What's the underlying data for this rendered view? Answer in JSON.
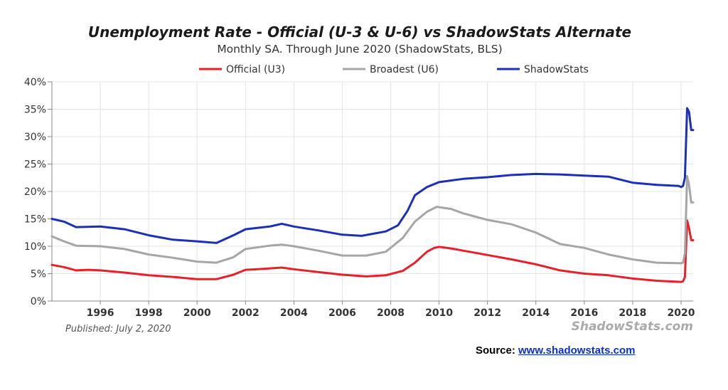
{
  "chart_data": {
    "type": "line",
    "title": "Unemployment Rate - Official (U-3 & U-6) vs ShadowStats Alternate",
    "subtitle": "Monthly SA. Through June 2020  (ShadowStats, BLS)",
    "ylim": [
      0,
      40
    ],
    "xlim": [
      1994.0,
      2020.5
    ],
    "y_ticks": [
      0,
      5,
      10,
      15,
      20,
      25,
      30,
      35,
      40
    ],
    "y_tick_labels": [
      "0%",
      "5%",
      "10%",
      "15%",
      "20%",
      "25%",
      "30%",
      "35%",
      "40%"
    ],
    "x_ticks": [
      1996,
      1998,
      2000,
      2002,
      2004,
      2006,
      2008,
      2010,
      2012,
      2014,
      2016,
      2018,
      2020
    ],
    "x_tick_labels": [
      "1996",
      "1998",
      "2000",
      "2002",
      "2004",
      "2006",
      "2008",
      "2010",
      "2012",
      "2014",
      "2016",
      "2018",
      "2020"
    ],
    "grid": true,
    "legend_position": "top-center",
    "series": [
      {
        "name": "Official (U3)",
        "color": "#e8202a",
        "x": [
          1994.0,
          1994.5,
          1995.0,
          1995.5,
          1996.0,
          1997.0,
          1998.0,
          1999.0,
          2000.0,
          2000.8,
          2001.5,
          2002.0,
          2002.5,
          2003.5,
          2004.0,
          2005.0,
          2006.0,
          2007.0,
          2007.8,
          2008.5,
          2009.0,
          2009.5,
          2009.8,
          2010.0,
          2010.5,
          2011.0,
          2012.0,
          2013.0,
          2014.0,
          2015.0,
          2016.0,
          2017.0,
          2018.0,
          2019.0,
          2020.0,
          2020.08,
          2020.16,
          2020.25,
          2020.33,
          2020.42,
          2020.5
        ],
        "y": [
          6.6,
          6.2,
          5.6,
          5.7,
          5.6,
          5.2,
          4.7,
          4.4,
          4.0,
          4.0,
          4.8,
          5.7,
          5.8,
          6.1,
          5.8,
          5.3,
          4.8,
          4.5,
          4.7,
          5.5,
          7.0,
          9.0,
          9.7,
          9.9,
          9.6,
          9.2,
          8.4,
          7.6,
          6.7,
          5.6,
          5.0,
          4.7,
          4.1,
          3.7,
          3.5,
          3.6,
          4.4,
          14.7,
          13.3,
          11.1,
          11.1
        ]
      },
      {
        "name": "Broadest (U6)",
        "color": "#a6a6a6",
        "x": [
          1994.0,
          1994.5,
          1995.0,
          1996.0,
          1997.0,
          1998.0,
          1999.0,
          2000.0,
          2000.8,
          2001.5,
          2002.0,
          2003.0,
          2003.5,
          2004.0,
          2005.0,
          2006.0,
          2007.0,
          2007.8,
          2008.5,
          2009.0,
          2009.5,
          2009.9,
          2010.5,
          2011.0,
          2012.0,
          2013.0,
          2014.0,
          2015.0,
          2016.0,
          2017.0,
          2018.0,
          2019.0,
          2020.0,
          2020.08,
          2020.16,
          2020.25,
          2020.33,
          2020.42,
          2020.5
        ],
        "y": [
          11.8,
          10.9,
          10.1,
          10.0,
          9.5,
          8.5,
          7.9,
          7.2,
          7.0,
          8.0,
          9.5,
          10.1,
          10.3,
          10.0,
          9.2,
          8.3,
          8.3,
          9.0,
          11.5,
          14.5,
          16.3,
          17.2,
          16.8,
          16.0,
          14.8,
          14.0,
          12.5,
          10.4,
          9.7,
          8.5,
          7.6,
          7.0,
          6.9,
          7.0,
          8.7,
          22.8,
          21.2,
          18.0,
          18.0
        ]
      },
      {
        "name": "ShadowStats",
        "color": "#1d2fb8",
        "x": [
          1994.0,
          1994.5,
          1995.0,
          1996.0,
          1997.0,
          1998.0,
          1999.0,
          2000.0,
          2000.8,
          2001.5,
          2002.0,
          2003.0,
          2003.5,
          2004.0,
          2005.0,
          2006.0,
          2006.8,
          2007.8,
          2008.3,
          2008.7,
          2009.0,
          2009.5,
          2010.0,
          2010.5,
          2011.0,
          2012.0,
          2013.0,
          2014.0,
          2015.0,
          2016.0,
          2017.0,
          2018.0,
          2019.0,
          2019.9,
          2020.0,
          2020.08,
          2020.16,
          2020.25,
          2020.33,
          2020.42,
          2020.5
        ],
        "y": [
          15.0,
          14.5,
          13.5,
          13.6,
          13.1,
          12.0,
          11.2,
          10.9,
          10.6,
          12.0,
          13.1,
          13.6,
          14.1,
          13.6,
          12.9,
          12.1,
          11.9,
          12.7,
          13.8,
          16.5,
          19.3,
          20.8,
          21.7,
          22.0,
          22.3,
          22.6,
          23.0,
          23.2,
          23.1,
          22.9,
          22.7,
          21.6,
          21.2,
          21.0,
          20.8,
          21.0,
          22.5,
          35.2,
          34.5,
          31.2,
          31.2
        ]
      }
    ]
  },
  "published_text": "Published: July 2, 2020",
  "watermark_text": "ShadowStats.com",
  "source": {
    "label": "Source: ",
    "link_text": "www.shadowstats.com"
  }
}
